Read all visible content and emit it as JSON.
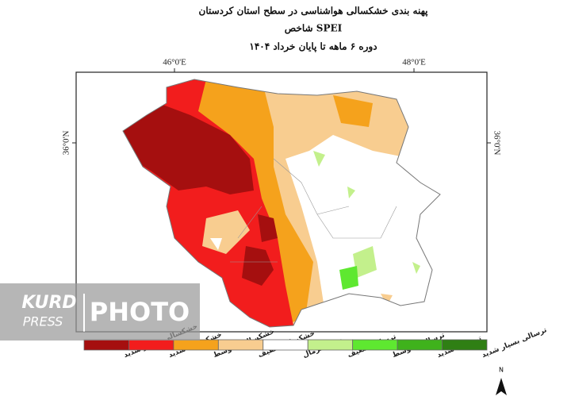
{
  "map": {
    "title": "پهنه بندی خشکسالی هواشناسی در سطح استان کردستان",
    "subtitle": "شاخص SPEI",
    "period": "دوره ۶ ماهه تا پایان خرداد ۱۴۰۴",
    "lon_labels": [
      "46°0'E",
      "48°0'E"
    ],
    "lat_labels": [
      "36°0'N",
      "36°0'N"
    ],
    "legend": [
      {
        "label": "خشکسالی بسیار شدید",
        "color": "#a50f0f"
      },
      {
        "label": "خشکسالی شدید",
        "color": "#f21d1d"
      },
      {
        "label": "خشکسالی متوسط",
        "color": "#f5a21c"
      },
      {
        "label": "خشکسالی خفیف",
        "color": "#f8cd90"
      },
      {
        "label": "در حد نرمال",
        "color": "#ffffff"
      },
      {
        "label": "ترسالی ضعیف",
        "color": "#c3f08c"
      },
      {
        "label": "ترسالی متوسط",
        "color": "#5ee830"
      },
      {
        "label": "ترسالی شدید",
        "color": "#3fb21c"
      },
      {
        "label": "ترسالی بسیار شدید",
        "color": "#2f7f14"
      }
    ],
    "north": "N",
    "watermark": {
      "brand_top": "KURD",
      "brand_bottom": "PRESS",
      "word": "PHOTO"
    }
  }
}
